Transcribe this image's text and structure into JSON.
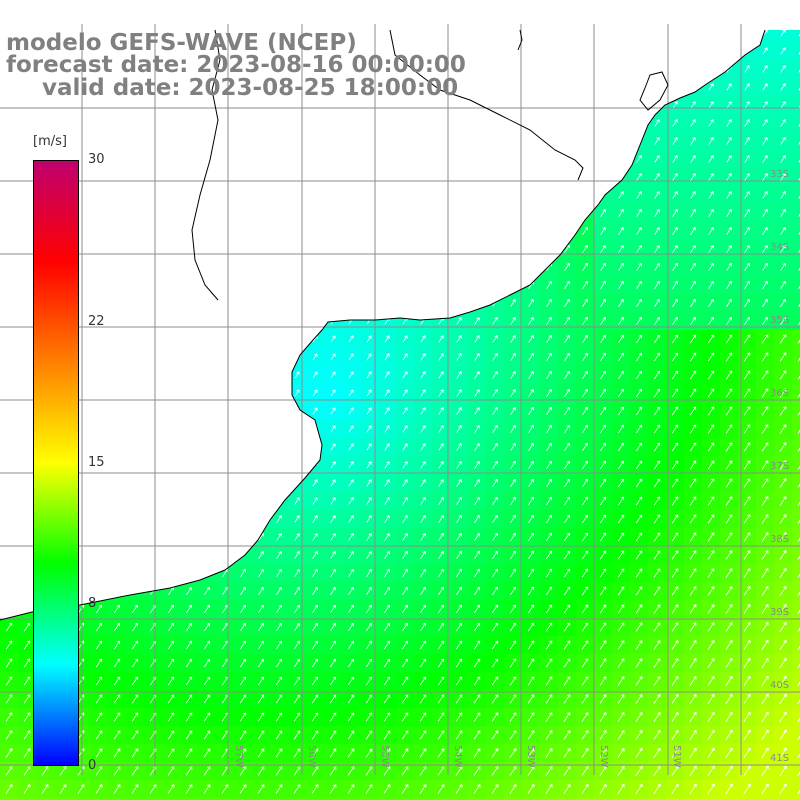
{
  "title": {
    "line1": "modelo GEFS-WAVE (NCEP)",
    "line2": "forecast date: 2023-08-16 00:00:00",
    "line3": "valid date: 2023-08-25 18:00:00"
  },
  "colorbar": {
    "units": "[m/s]",
    "min": 0,
    "max": 30,
    "ticks": [
      {
        "value": 30,
        "label": "30"
      },
      {
        "value": 22,
        "label": "22"
      },
      {
        "value": 15,
        "label": "15"
      },
      {
        "value": 8,
        "label": "8"
      },
      {
        "value": 0,
        "label": "0"
      }
    ],
    "stops": [
      "#0000ff",
      "#00ffff",
      "#00ff00",
      "#ffff00",
      "#ff8000",
      "#ff0000",
      "#c0006f"
    ]
  },
  "map": {
    "variable": "wind speed and direction",
    "lon_range": [
      -59,
      -49.5
    ],
    "lat_range": [
      -41.5,
      -30.5
    ],
    "grid_step_deg": 1,
    "land_color": "#ffffff",
    "coast_color": "#000000",
    "grid_color": "#8c8c8c",
    "arrow_color": "#ffffff",
    "lat_labels": [
      "33S",
      "34S",
      "35S",
      "36S",
      "37S",
      "38S",
      "39S",
      "40S",
      "41S"
    ],
    "lon_labels": [
      "57W",
      "56W",
      "55W",
      "54W",
      "53W",
      "52W",
      "51W"
    ]
  }
}
